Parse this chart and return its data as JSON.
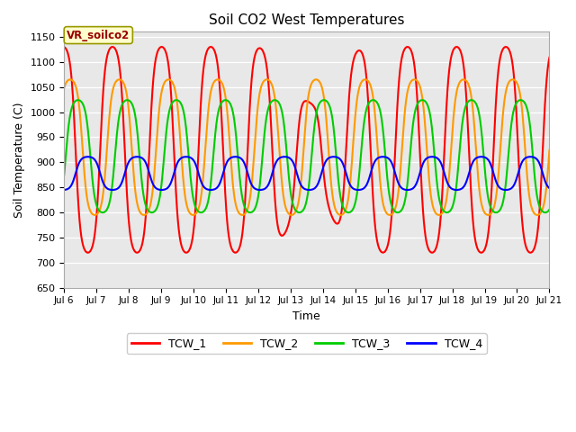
{
  "title": "Soil CO2 West Temperatures",
  "xlabel": "Time",
  "ylabel": "Soil Temperature (C)",
  "ylim": [
    650,
    1160
  ],
  "xlim_days": [
    6,
    21
  ],
  "plot_bg": "#e8e8e8",
  "fig_bg": "#ffffff",
  "annotation_text": "VR_soilco2",
  "annotation_bg": "#ffffcc",
  "annotation_border": "#999900",
  "annotation_text_color": "#990000",
  "colors": {
    "TCW_1": "#ff0000",
    "TCW_2": "#ff9900",
    "TCW_3": "#00cc00",
    "TCW_4": "#0000ff"
  },
  "tick_days": [
    6,
    7,
    8,
    9,
    10,
    11,
    12,
    13,
    14,
    15,
    16,
    17,
    18,
    19,
    20,
    21
  ],
  "tick_labels": [
    "Jul 6",
    "Jul 7",
    "Jul 8",
    "Jul 9",
    "Jul 10",
    "Jul 11",
    "Jul 12",
    "Jul 13",
    "Jul 14",
    "Jul 15",
    "Jul 16",
    "Jul 17",
    "Jul 18",
    "Jul 19",
    "Jul 20",
    "Jul 21"
  ],
  "yticks": [
    650,
    700,
    750,
    800,
    850,
    900,
    950,
    1000,
    1050,
    1100,
    1150
  ],
  "linewidth": 1.5,
  "TCW_1": {
    "mean": 925,
    "amp": 205,
    "period": 1.52,
    "phase": 0.68
  },
  "TCW_2": {
    "mean": 930,
    "amp": 135,
    "period": 1.52,
    "phase": 0.82
  },
  "TCW_3": {
    "mean": 912,
    "amp": 112,
    "period": 1.52,
    "phase": 0.98
  },
  "TCW_4": {
    "mean": 878,
    "amp": 33,
    "period": 1.52,
    "phase": 0.18
  }
}
